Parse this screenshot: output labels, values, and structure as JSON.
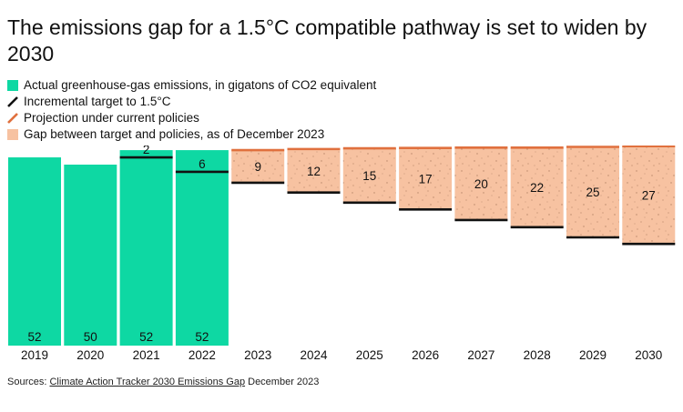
{
  "title": "The emissions gap for a 1.5°C compatible pathway is set to widen by 2030",
  "legend": {
    "actual": "Actual greenhouse-gas emissions, in gigatons of CO2 equivalent",
    "target": "Incremental target to 1.5°C",
    "projection": "Projection under current policies",
    "gap": "Gap between target and policies, as of December 2023"
  },
  "colors": {
    "actual": "#0ed8a3",
    "gap": "#f7c2a1",
    "projection": "#e0703e",
    "target": "#111111",
    "speckle": "#b8876a"
  },
  "source": {
    "prefix": "Sources: ",
    "link": "Climate Action Tracker 2030 Emissions Gap",
    "suffix": " December 2023"
  },
  "chart_data": {
    "type": "bar",
    "categories": [
      "2019",
      "2020",
      "2021",
      "2022",
      "2023",
      "2024",
      "2025",
      "2026",
      "2027",
      "2028",
      "2029",
      "2030"
    ],
    "actual": [
      52,
      50,
      52,
      52,
      null,
      null,
      null,
      null,
      null,
      null,
      null,
      null
    ],
    "gap": [
      null,
      null,
      2,
      6,
      9,
      12,
      15,
      17,
      20,
      22,
      25,
      27
    ],
    "projection": [
      null,
      null,
      54,
      54,
      54,
      54.3,
      54.5,
      54.6,
      54.7,
      54.7,
      54.9,
      55.1
    ],
    "target": [
      null,
      null,
      52,
      48,
      45,
      42.3,
      39.5,
      37.6,
      34.7,
      32.7,
      29.9,
      28.1
    ],
    "ylim": [
      0,
      56
    ]
  }
}
